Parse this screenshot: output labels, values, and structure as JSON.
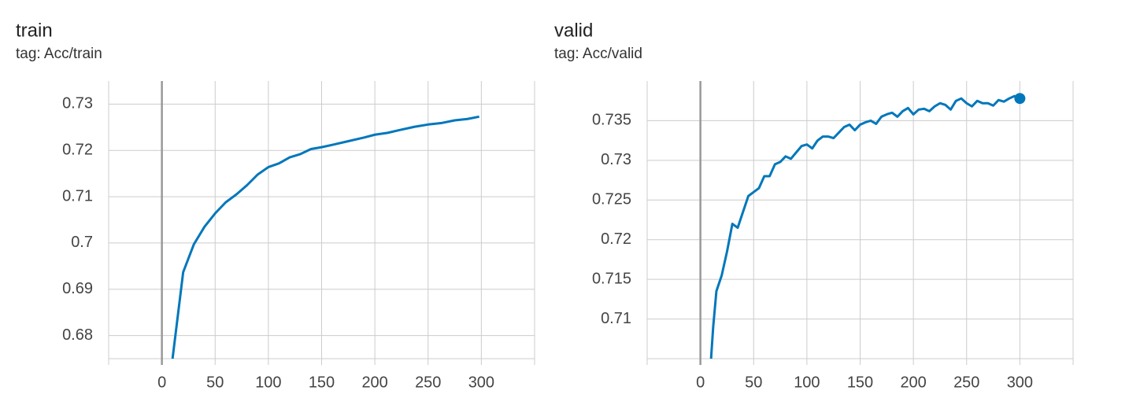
{
  "chart_data": [
    {
      "type": "line",
      "title": "train",
      "subtitle": "tag: Acc/train",
      "x": [
        10,
        20,
        30,
        40,
        50,
        60,
        70,
        80,
        90,
        100,
        110,
        120,
        130,
        140,
        150,
        160,
        175,
        190,
        200,
        212,
        225,
        237,
        250,
        262,
        275,
        287,
        298
      ],
      "series": [
        {
          "name": "train",
          "color": "#0077bb",
          "values": [
            0.675,
            0.6937,
            0.6997,
            0.7035,
            0.7064,
            0.7088,
            0.7105,
            0.7125,
            0.7148,
            0.7164,
            0.7172,
            0.7185,
            0.7192,
            0.7203,
            0.7207,
            0.7212,
            0.722,
            0.7228,
            0.7234,
            0.7238,
            0.7245,
            0.7251,
            0.7256,
            0.7259,
            0.7265,
            0.7268,
            0.7273
          ]
        }
      ],
      "xlim": [
        -50,
        350
      ],
      "xticks": [
        0,
        50,
        100,
        150,
        200,
        250,
        300
      ],
      "ylim": [
        0.675,
        0.735
      ],
      "yticks": [
        0.68,
        0.69,
        0.7,
        0.71,
        0.72,
        0.73
      ],
      "grid": true
    },
    {
      "type": "line",
      "title": "valid",
      "subtitle": "tag: Acc/valid",
      "x": [
        10,
        12,
        15,
        20,
        25,
        30,
        35,
        40,
        45,
        50,
        55,
        60,
        65,
        70,
        75,
        80,
        85,
        90,
        95,
        100,
        105,
        110,
        115,
        120,
        125,
        130,
        135,
        140,
        145,
        150,
        155,
        160,
        165,
        170,
        175,
        180,
        185,
        190,
        195,
        200,
        205,
        210,
        215,
        220,
        225,
        230,
        235,
        240,
        245,
        250,
        255,
        260,
        265,
        270,
        275,
        280,
        285,
        290,
        295,
        300
      ],
      "series": [
        {
          "name": "valid",
          "color": "#0077bb",
          "values": [
            0.705,
            0.709,
            0.7135,
            0.7155,
            0.7185,
            0.722,
            0.7215,
            0.7235,
            0.7255,
            0.726,
            0.7265,
            0.728,
            0.728,
            0.7295,
            0.7298,
            0.7305,
            0.7302,
            0.731,
            0.7318,
            0.732,
            0.7315,
            0.7325,
            0.733,
            0.733,
            0.7328,
            0.7335,
            0.7342,
            0.7345,
            0.7338,
            0.7345,
            0.7348,
            0.735,
            0.7346,
            0.7355,
            0.7358,
            0.736,
            0.7355,
            0.7362,
            0.7366,
            0.7358,
            0.7364,
            0.7365,
            0.7362,
            0.7368,
            0.7372,
            0.737,
            0.7364,
            0.7375,
            0.7378,
            0.7372,
            0.7368,
            0.7375,
            0.7372,
            0.7372,
            0.7369,
            0.7376,
            0.7374,
            0.7378,
            0.7381,
            0.7378
          ]
        }
      ],
      "xlim": [
        -50,
        350
      ],
      "xticks": [
        0,
        50,
        100,
        150,
        200,
        250,
        300
      ],
      "ylim": [
        0.705,
        0.74
      ],
      "yticks": [
        0.71,
        0.715,
        0.72,
        0.725,
        0.73,
        0.735
      ],
      "grid": true
    }
  ]
}
